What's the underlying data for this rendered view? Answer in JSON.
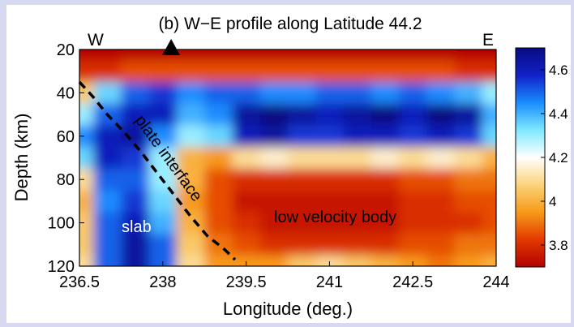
{
  "chart_data": {
    "type": "heatmap",
    "title": "(b) W−E profile along Latitude 44.2",
    "xlabel": "Longitude (deg.)",
    "ylabel": "Depth (km)",
    "xlim": [
      236.5,
      244
    ],
    "ylim": [
      20,
      120
    ],
    "y_inverted": true,
    "x_ticks": [
      "236.5",
      "238",
      "239.5",
      "241",
      "242.5",
      "244"
    ],
    "y_ticks": [
      "20",
      "40",
      "60",
      "80",
      "100",
      "120"
    ],
    "colorbar": {
      "ticks": [
        "3.8",
        "4",
        "4.2",
        "4.4",
        "4.6"
      ],
      "range": [
        3.7,
        4.7
      ],
      "colors": [
        "#b30000",
        "#e23a00",
        "#f79a1a",
        "#fbd37a",
        "#ffffff",
        "#7fe8ff",
        "#1a8cff",
        "#1122c8",
        "#0a0a82"
      ]
    },
    "edge_labels": {
      "west": "W",
      "east": "E"
    },
    "marker": {
      "symbol": "triangle",
      "longitude": 238.15
    },
    "annotations": {
      "slab": "slab",
      "plate_interface": "plate interface",
      "low_velocity_body": "low velocity body"
    },
    "plate_interface_line": [
      [
        236.5,
        35
      ],
      [
        236.75,
        42
      ],
      [
        237.0,
        50
      ],
      [
        237.3,
        58
      ],
      [
        237.6,
        67
      ],
      [
        237.9,
        77
      ],
      [
        238.2,
        87
      ],
      [
        238.5,
        97
      ],
      [
        238.8,
        106
      ],
      [
        239.1,
        112
      ],
      [
        239.3,
        117
      ]
    ],
    "velocity_grid": {
      "longitudes": [
        236.5,
        237.0,
        237.5,
        238.0,
        238.5,
        239.0,
        239.5,
        240.0,
        240.5,
        241.0,
        241.5,
        242.0,
        242.5,
        243.0,
        243.5,
        244.0
      ],
      "depths": [
        20,
        30,
        40,
        50,
        60,
        70,
        80,
        90,
        100,
        110,
        120
      ],
      "values_km_s": [
        [
          3.7,
          3.7,
          3.7,
          3.7,
          3.7,
          3.7,
          3.7,
          3.7,
          3.7,
          3.7,
          3.7,
          3.7,
          3.7,
          3.7,
          3.7,
          3.7
        ],
        [
          3.8,
          3.8,
          3.85,
          3.85,
          3.85,
          3.85,
          3.85,
          3.85,
          3.85,
          3.85,
          3.85,
          3.85,
          3.85,
          3.85,
          3.8,
          3.8
        ],
        [
          4.05,
          4.35,
          4.5,
          4.55,
          4.45,
          4.5,
          4.5,
          4.45,
          4.45,
          4.5,
          4.5,
          4.45,
          4.5,
          4.45,
          4.4,
          4.3
        ],
        [
          4.3,
          4.5,
          4.6,
          4.6,
          4.4,
          4.45,
          4.65,
          4.7,
          4.65,
          4.6,
          4.65,
          4.7,
          4.6,
          4.7,
          4.65,
          4.4
        ],
        [
          4.45,
          4.6,
          4.65,
          4.45,
          4.3,
          4.35,
          4.6,
          4.65,
          4.55,
          4.55,
          4.6,
          4.6,
          4.55,
          4.6,
          4.55,
          4.35
        ],
        [
          4.35,
          4.6,
          4.55,
          4.3,
          4.0,
          3.95,
          4.1,
          4.15,
          4.1,
          4.1,
          4.1,
          4.15,
          4.1,
          4.15,
          4.1,
          4.0
        ],
        [
          4.1,
          4.5,
          4.5,
          4.3,
          4.0,
          3.85,
          3.8,
          3.8,
          3.8,
          3.8,
          3.8,
          3.8,
          3.85,
          3.85,
          3.9,
          3.9
        ],
        [
          4.0,
          4.45,
          4.55,
          4.35,
          3.95,
          3.85,
          3.75,
          3.75,
          3.75,
          3.75,
          3.75,
          3.75,
          3.8,
          3.8,
          3.85,
          3.85
        ],
        [
          4.05,
          4.5,
          4.6,
          4.4,
          4.0,
          3.85,
          3.8,
          3.75,
          3.75,
          3.75,
          3.75,
          3.75,
          3.8,
          3.8,
          3.8,
          3.85
        ],
        [
          4.05,
          4.5,
          4.65,
          4.5,
          4.05,
          3.9,
          3.85,
          3.8,
          3.8,
          3.8,
          3.8,
          3.8,
          3.85,
          3.85,
          3.9,
          3.9
        ],
        [
          4.1,
          4.5,
          4.65,
          4.5,
          4.1,
          3.95,
          3.95,
          3.95,
          4.05,
          4.1,
          4.05,
          4.0,
          3.95,
          3.9,
          3.95,
          4.0
        ]
      ]
    }
  }
}
